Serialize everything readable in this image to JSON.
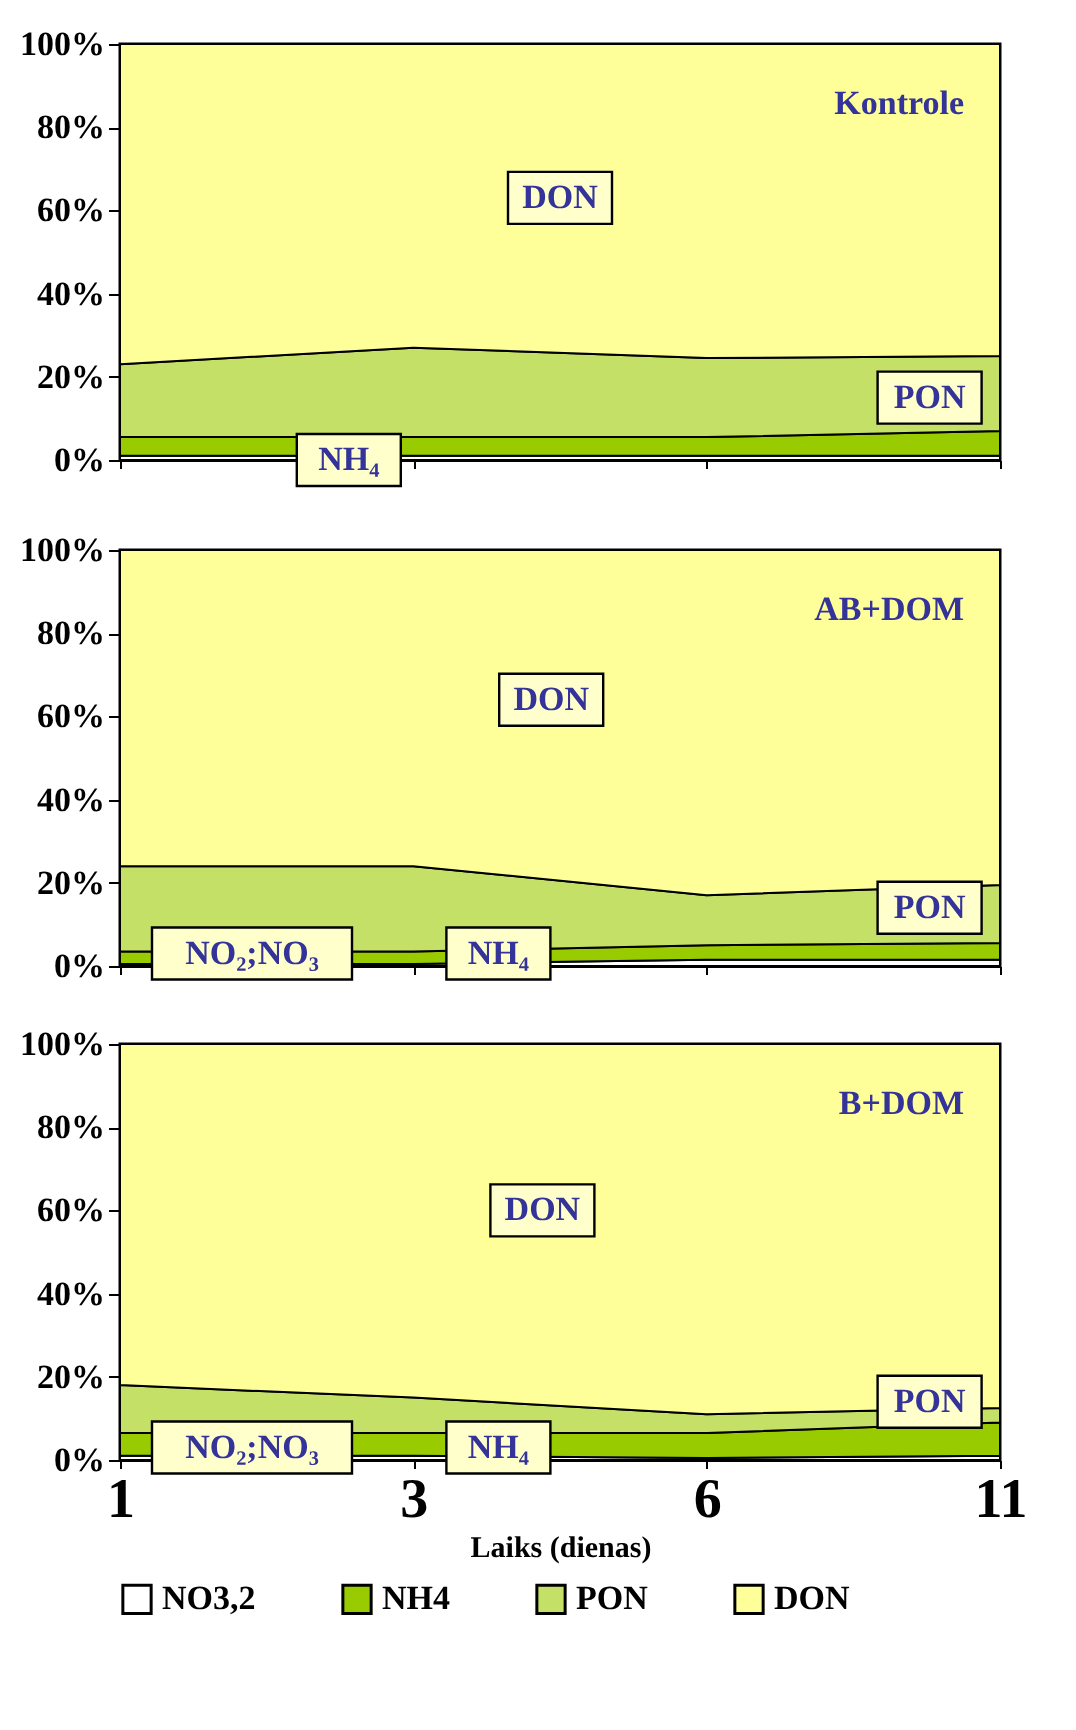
{
  "chart_data": [
    {
      "type": "area",
      "title": "Kontrole",
      "categories": [
        "1",
        "3",
        "6",
        "11"
      ],
      "stacked": true,
      "ylim": [
        0,
        100
      ],
      "yticks": [
        {
          "value": 0,
          "label": "0%"
        },
        {
          "value": 20,
          "label": "20%"
        },
        {
          "value": 40,
          "label": "40%"
        },
        {
          "value": 60,
          "label": "60%"
        },
        {
          "value": 80,
          "label": "80%"
        },
        {
          "value": 100,
          "label": "100%"
        }
      ],
      "tick_labels": "y",
      "series": [
        {
          "color": "#ffffff",
          "values": [
            1,
            1,
            1,
            1
          ]
        },
        {
          "color": "#99cc00",
          "values": [
            4.5,
            4.5,
            4.5,
            6
          ]
        },
        {
          "color": "#c4e066",
          "values": [
            17.5,
            21.5,
            19,
            18
          ]
        },
        {
          "color": "#ffff99",
          "values": [
            77,
            73,
            75.5,
            75
          ]
        }
      ],
      "annotations": [
        "DON",
        "PON",
        "NH₄"
      ]
    },
    {
      "type": "area",
      "title": "AB+DOM",
      "categories": [
        "1",
        "3",
        "6",
        "11"
      ],
      "stacked": true,
      "ylim": [
        0,
        100
      ],
      "yticks": [
        {
          "value": 0,
          "label": "0%"
        },
        {
          "value": 20,
          "label": "20%"
        },
        {
          "value": 40,
          "label": "40%"
        },
        {
          "value": 60,
          "label": "60%"
        },
        {
          "value": 80,
          "label": "80%"
        },
        {
          "value": 100,
          "label": "100%"
        }
      ],
      "tick_labels": "y",
      "series": [
        {
          "color": "#ffffff",
          "values": [
            0.5,
            0.5,
            1.5,
            1.5
          ]
        },
        {
          "color": "#99cc00",
          "values": [
            3,
            3,
            3.5,
            4
          ]
        },
        {
          "color": "#c4e066",
          "values": [
            20.5,
            20.5,
            12,
            14
          ]
        },
        {
          "color": "#ffff99",
          "values": [
            76,
            76,
            83,
            80.5
          ]
        }
      ],
      "annotations": [
        "DON",
        "PON",
        "NO₂;NO₃",
        "NH₄"
      ]
    },
    {
      "type": "area",
      "title": "B+DOM",
      "categories": [
        "1",
        "3",
        "6",
        "11"
      ],
      "stacked": true,
      "ylim": [
        0,
        100
      ],
      "yticks": [
        {
          "value": 0,
          "label": "0%"
        },
        {
          "value": 20,
          "label": "20%"
        },
        {
          "value": 40,
          "label": "40%"
        },
        {
          "value": 60,
          "label": "60%"
        },
        {
          "value": 80,
          "label": "80%"
        },
        {
          "value": 100,
          "label": "100%"
        }
      ],
      "xlabel": "Laiks (dienas)",
      "legend": "bottom",
      "series": [
        {
          "name": "NO3,2",
          "color": "#ffffff",
          "values": [
            1,
            1,
            0.5,
            1
          ]
        },
        {
          "name": "NH4",
          "color": "#99cc00",
          "values": [
            5.5,
            5.5,
            6,
            8
          ]
        },
        {
          "name": "PON",
          "color": "#c4e066",
          "values": [
            11.5,
            8.5,
            4.5,
            3.5
          ]
        },
        {
          "name": "DON",
          "color": "#ffff99",
          "values": [
            82,
            85,
            89,
            87.5
          ]
        }
      ],
      "annotations": [
        "DON",
        "PON",
        "NO₂;NO₃",
        "NH₄"
      ]
    }
  ]
}
